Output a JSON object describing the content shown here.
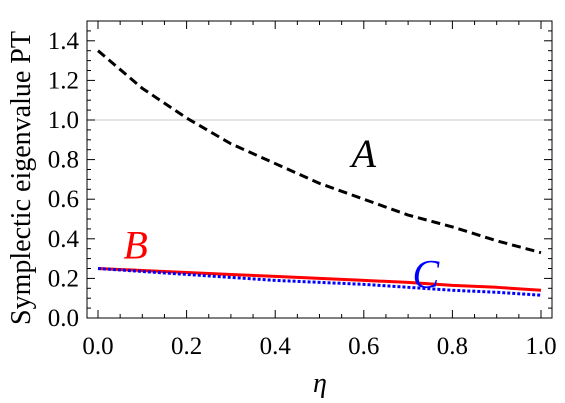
{
  "chart_data": {
    "type": "line",
    "xlabel": "η",
    "ylabel": "Symplectic eigenvalue PT",
    "xlim": [
      0.0,
      1.0
    ],
    "ylim": [
      0.0,
      1.5
    ],
    "x_ticks": [
      "0.0",
      "0.2",
      "0.4",
      "0.6",
      "0.8",
      "1.0"
    ],
    "y_ticks": [
      "0.0",
      "0.2",
      "0.4",
      "0.6",
      "0.8",
      "1.0",
      "1.2",
      "1.4"
    ],
    "reference_line_y": 1.0,
    "grid": false,
    "x": [
      0.0,
      0.1,
      0.2,
      0.3,
      0.4,
      0.5,
      0.6,
      0.7,
      0.8,
      0.9,
      1.0
    ],
    "series": [
      {
        "name": "A",
        "color": "#000000",
        "style": "dashed",
        "values": [
          1.35,
          1.16,
          1.01,
          0.88,
          0.78,
          0.68,
          0.6,
          0.52,
          0.46,
          0.39,
          0.33
        ]
      },
      {
        "name": "B",
        "color": "#ff0000",
        "style": "solid",
        "values": [
          0.25,
          0.24,
          0.23,
          0.22,
          0.21,
          0.2,
          0.19,
          0.18,
          0.165,
          0.155,
          0.14
        ]
      },
      {
        "name": "C",
        "color": "#0000ff",
        "style": "dotted",
        "values": [
          0.25,
          0.235,
          0.22,
          0.205,
          0.19,
          0.18,
          0.17,
          0.155,
          0.14,
          0.13,
          0.115
        ]
      }
    ]
  }
}
